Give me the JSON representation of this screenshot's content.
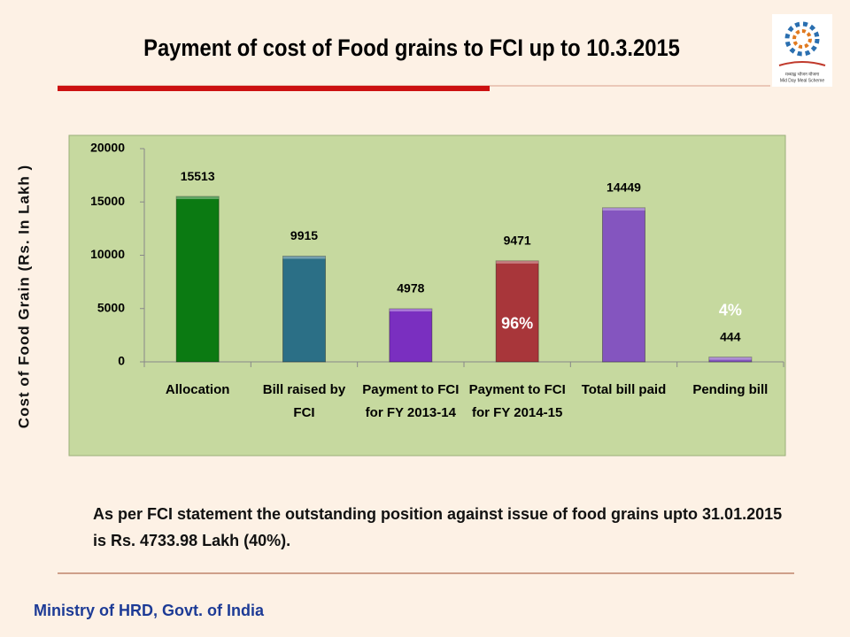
{
  "chart_data": {
    "type": "bar",
    "title": "Payment of cost of Food grains to FCI up to 10.3.2015",
    "ylabel": "Cost of Food Grain (Rs. In Lakh )",
    "categories": [
      "Allocation",
      "Bill raised by FCI",
      "Payment to FCI for FY 2013-14",
      "Payment to FCI for FY 2014-15",
      "Total bill paid",
      "Pending bill"
    ],
    "values": [
      15513,
      9915,
      4978,
      9471,
      14449,
      444
    ],
    "colors": [
      "#0b7a12",
      "#2b6f86",
      "#7a2fc0",
      "#a8363a",
      "#8455bf",
      "#8455bf"
    ],
    "ylim": [
      0,
      20000
    ],
    "yticks": [
      0,
      5000,
      10000,
      15000,
      20000
    ],
    "grid": false,
    "annotations": [
      {
        "text": "96%",
        "category": 3
      },
      {
        "text": "4%",
        "category": 5
      }
    ]
  },
  "note": "As per FCI statement the outstanding position against issue of food grains upto 31.01.2015 is Rs. 4733.98  Lakh (40%).",
  "footer": "Ministry of HRD, Govt. of India",
  "logo": {
    "hindi": "मध्याह्न भोजन योजना",
    "caption": "Mid Day Meal Scheme"
  }
}
